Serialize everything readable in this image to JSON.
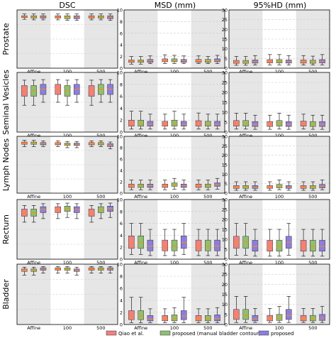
{
  "columns": [
    "DSC",
    "MSD (mm)",
    "95%HD (mm)"
  ],
  "rows": [
    "Prostate",
    "Seminal Vesicles",
    "Lymph Nodes",
    "Rectum",
    "Bladder"
  ],
  "groups": [
    "Affine",
    "100",
    "500"
  ],
  "legend": {
    "items": [
      {
        "label": "Qiao et al.",
        "color": "#f08080"
      },
      {
        "label": "proposed (manual bladder contour)",
        "color": "#8fbf6f"
      },
      {
        "label": "proposed",
        "color": "#8c7ee0"
      }
    ]
  },
  "colors": {
    "shade": "#e6e6e6",
    "grid": "#cccccc",
    "median": "#ff8c00"
  },
  "chart_data": {
    "type": "box",
    "x_groups": [
      "Affine",
      "100",
      "500"
    ],
    "boxes_per_group": 3,
    "shaded_groups": [
      0,
      2
    ],
    "series_colors": [
      "#f08080",
      "#8fbf6f",
      "#8c7ee0"
    ],
    "panels": [
      {
        "row": 0,
        "col": 0,
        "ylim": [
          0,
          1
        ],
        "yticks": [],
        "boxes": [
          [
            0.84,
            0.87,
            0.89,
            0.9,
            0.93
          ],
          [
            0.83,
            0.86,
            0.88,
            0.9,
            0.93
          ],
          [
            0.83,
            0.86,
            0.88,
            0.9,
            0.93
          ],
          [
            0.83,
            0.86,
            0.88,
            0.9,
            0.93
          ],
          [
            0.82,
            0.85,
            0.88,
            0.9,
            0.93
          ],
          [
            0.82,
            0.85,
            0.88,
            0.9,
            0.93
          ],
          [
            0.83,
            0.86,
            0.88,
            0.9,
            0.93
          ],
          [
            0.83,
            0.86,
            0.88,
            0.9,
            0.93
          ],
          [
            0.82,
            0.85,
            0.88,
            0.9,
            0.93
          ]
        ]
      },
      {
        "row": 0,
        "col": 1,
        "ylim": [
          0,
          10
        ],
        "yticks": [
          0,
          2,
          4,
          6,
          8,
          10
        ],
        "boxes": [
          [
            0.7,
            1.0,
            1.2,
            1.4,
            2.0
          ],
          [
            0.7,
            1.0,
            1.2,
            1.4,
            2.0
          ],
          [
            0.8,
            1.0,
            1.3,
            1.5,
            2.1
          ],
          [
            0.8,
            1.1,
            1.3,
            1.6,
            2.3
          ],
          [
            0.8,
            1.1,
            1.3,
            1.6,
            2.2
          ],
          [
            0.8,
            1.0,
            1.3,
            1.5,
            2.1
          ],
          [
            0.8,
            1.0,
            1.2,
            1.5,
            2.1
          ],
          [
            0.8,
            1.0,
            1.2,
            1.5,
            2.0
          ],
          [
            0.8,
            1.1,
            1.3,
            1.6,
            2.2
          ]
        ]
      },
      {
        "row": 0,
        "col": 2,
        "ylim": [
          0,
          30
        ],
        "yticks": [
          0,
          5,
          10,
          15,
          20,
          25,
          30
        ],
        "boxes": [
          [
            1.5,
            2.5,
            3.2,
            4.0,
            6.0
          ],
          [
            1.5,
            2.5,
            3.2,
            4.0,
            6.0
          ],
          [
            1.6,
            2.6,
            3.3,
            4.2,
            6.5
          ],
          [
            1.7,
            2.7,
            3.4,
            4.4,
            7.0
          ],
          [
            1.7,
            2.7,
            3.4,
            4.4,
            7.0
          ],
          [
            1.6,
            2.6,
            3.3,
            4.2,
            6.5
          ],
          [
            1.6,
            2.6,
            3.3,
            4.2,
            6.5
          ],
          [
            1.6,
            2.5,
            3.2,
            4.1,
            6.2
          ],
          [
            1.7,
            2.7,
            3.4,
            4.4,
            7.0
          ]
        ]
      },
      {
        "row": 1,
        "col": 0,
        "ylim": [
          0,
          1
        ],
        "yticks": [],
        "boxes": [
          [
            0.45,
            0.6,
            0.7,
            0.78,
            0.87
          ],
          [
            0.45,
            0.6,
            0.7,
            0.78,
            0.87
          ],
          [
            0.5,
            0.63,
            0.72,
            0.8,
            0.88
          ],
          [
            0.5,
            0.63,
            0.72,
            0.8,
            0.88
          ],
          [
            0.45,
            0.6,
            0.7,
            0.78,
            0.87
          ],
          [
            0.5,
            0.63,
            0.72,
            0.8,
            0.88
          ],
          [
            0.45,
            0.6,
            0.7,
            0.78,
            0.87
          ],
          [
            0.5,
            0.63,
            0.72,
            0.8,
            0.88
          ],
          [
            0.5,
            0.63,
            0.72,
            0.8,
            0.88
          ]
        ]
      },
      {
        "row": 1,
        "col": 1,
        "ylim": [
          0,
          10
        ],
        "yticks": [
          0,
          2,
          4,
          6,
          8,
          10
        ],
        "boxes": [
          [
            0.5,
            1.0,
            1.4,
            2.0,
            3.5
          ],
          [
            0.5,
            1.0,
            1.4,
            2.0,
            3.5
          ],
          [
            0.5,
            1.0,
            1.3,
            1.8,
            3.0
          ],
          [
            0.5,
            1.0,
            1.3,
            1.8,
            3.0
          ],
          [
            0.5,
            1.0,
            1.4,
            2.0,
            3.5
          ],
          [
            0.5,
            1.0,
            1.3,
            1.8,
            3.0
          ],
          [
            0.5,
            1.0,
            1.4,
            1.9,
            3.2
          ],
          [
            0.5,
            1.0,
            1.3,
            1.8,
            3.0
          ],
          [
            0.5,
            1.0,
            1.3,
            1.8,
            3.0
          ]
        ]
      },
      {
        "row": 1,
        "col": 2,
        "ylim": [
          0,
          30
        ],
        "yticks": [
          0,
          5,
          10,
          15,
          20,
          25,
          30
        ],
        "boxes": [
          [
            1.5,
            3.0,
            4.3,
            5.8,
            9.5
          ],
          [
            1.5,
            3.0,
            4.3,
            5.8,
            9.5
          ],
          [
            1.4,
            2.8,
            3.9,
            5.3,
            8.5
          ],
          [
            1.4,
            2.8,
            3.9,
            5.3,
            8.5
          ],
          [
            1.5,
            3.0,
            4.3,
            5.8,
            9.5
          ],
          [
            1.4,
            2.8,
            3.9,
            5.3,
            8.5
          ],
          [
            1.5,
            3.0,
            4.1,
            5.5,
            9.0
          ],
          [
            1.4,
            2.8,
            3.9,
            5.3,
            8.5
          ],
          [
            1.4,
            2.8,
            3.9,
            5.3,
            8.5
          ]
        ]
      },
      {
        "row": 2,
        "col": 0,
        "ylim": [
          0,
          1
        ],
        "yticks": [],
        "boxes": [
          [
            0.82,
            0.86,
            0.88,
            0.9,
            0.93
          ],
          [
            0.82,
            0.86,
            0.88,
            0.9,
            0.93
          ],
          [
            0.82,
            0.85,
            0.87,
            0.89,
            0.92
          ],
          [
            0.82,
            0.85,
            0.87,
            0.89,
            0.92
          ],
          [
            0.8,
            0.84,
            0.86,
            0.88,
            0.91
          ],
          [
            0.8,
            0.84,
            0.86,
            0.88,
            0.91
          ],
          [
            0.82,
            0.85,
            0.87,
            0.89,
            0.92
          ],
          [
            0.82,
            0.85,
            0.87,
            0.89,
            0.92
          ],
          [
            0.78,
            0.82,
            0.85,
            0.87,
            0.9
          ]
        ]
      },
      {
        "row": 2,
        "col": 1,
        "ylim": [
          0,
          10
        ],
        "yticks": [
          0,
          2,
          4,
          6,
          8,
          10
        ],
        "boxes": [
          [
            0.6,
            1.0,
            1.3,
            1.6,
            2.3
          ],
          [
            0.6,
            1.0,
            1.3,
            1.6,
            2.3
          ],
          [
            0.6,
            1.0,
            1.3,
            1.6,
            2.3
          ],
          [
            0.6,
            1.0,
            1.3,
            1.6,
            2.3
          ],
          [
            0.7,
            1.2,
            1.5,
            1.8,
            2.6
          ],
          [
            0.6,
            1.0,
            1.3,
            1.6,
            2.3
          ],
          [
            0.6,
            1.0,
            1.3,
            1.6,
            2.3
          ],
          [
            0.6,
            1.0,
            1.3,
            1.6,
            2.3
          ],
          [
            0.7,
            1.2,
            1.5,
            1.8,
            2.6
          ]
        ]
      },
      {
        "row": 2,
        "col": 2,
        "ylim": [
          0,
          30
        ],
        "yticks": [
          0,
          5,
          10,
          15,
          20,
          25,
          30
        ],
        "boxes": [
          [
            1.5,
            2.5,
            3.2,
            4.0,
            6.0
          ],
          [
            1.5,
            2.5,
            3.2,
            4.0,
            6.0
          ],
          [
            1.5,
            2.5,
            3.2,
            4.0,
            6.0
          ],
          [
            1.5,
            2.5,
            3.2,
            4.0,
            6.0
          ],
          [
            1.8,
            2.8,
            3.6,
            4.6,
            7.0
          ],
          [
            1.5,
            2.5,
            3.2,
            4.0,
            6.0
          ],
          [
            1.5,
            2.5,
            3.2,
            4.0,
            6.0
          ],
          [
            1.5,
            2.5,
            3.2,
            4.0,
            6.0
          ],
          [
            1.8,
            2.8,
            3.6,
            4.6,
            7.0
          ]
        ]
      },
      {
        "row": 3,
        "col": 0,
        "ylim": [
          0,
          1
        ],
        "yticks": [],
        "boxes": [
          [
            0.62,
            0.72,
            0.78,
            0.84,
            0.9
          ],
          [
            0.62,
            0.72,
            0.78,
            0.84,
            0.9
          ],
          [
            0.68,
            0.78,
            0.83,
            0.88,
            0.93
          ],
          [
            0.68,
            0.78,
            0.83,
            0.88,
            0.93
          ],
          [
            0.7,
            0.8,
            0.85,
            0.89,
            0.94
          ],
          [
            0.68,
            0.78,
            0.83,
            0.88,
            0.93
          ],
          [
            0.62,
            0.72,
            0.78,
            0.84,
            0.9
          ],
          [
            0.68,
            0.78,
            0.83,
            0.88,
            0.93
          ],
          [
            0.7,
            0.8,
            0.85,
            0.89,
            0.94
          ]
        ]
      },
      {
        "row": 3,
        "col": 1,
        "ylim": [
          0,
          10
        ],
        "yticks": [
          0,
          2,
          4,
          6,
          8,
          10
        ],
        "boxes": [
          [
            0.8,
            1.8,
            2.8,
            3.9,
            6.0
          ],
          [
            0.8,
            1.8,
            2.8,
            3.9,
            6.0
          ],
          [
            0.6,
            1.4,
            2.2,
            3.2,
            5.0
          ],
          [
            0.6,
            1.4,
            2.2,
            3.2,
            5.0
          ],
          [
            0.6,
            1.4,
            2.2,
            3.2,
            5.0
          ],
          [
            0.8,
            1.8,
            2.8,
            3.9,
            6.0
          ],
          [
            0.6,
            1.4,
            2.2,
            3.2,
            5.0
          ],
          [
            0.6,
            1.4,
            2.2,
            3.2,
            5.0
          ],
          [
            0.6,
            1.4,
            2.2,
            3.2,
            5.0
          ]
        ]
      },
      {
        "row": 3,
        "col": 2,
        "ylim": [
          0,
          30
        ],
        "yticks": [
          0,
          5,
          10,
          15,
          20,
          25,
          30
        ],
        "boxes": [
          [
            2,
            5.5,
            8.5,
            11.5,
            18
          ],
          [
            2,
            5.5,
            8.5,
            11.5,
            18
          ],
          [
            1.5,
            4.0,
            6.5,
            9.5,
            15
          ],
          [
            1.5,
            4.0,
            6.5,
            9.5,
            15
          ],
          [
            1.5,
            4.0,
            6.5,
            9.5,
            15
          ],
          [
            2,
            5.5,
            8.5,
            11.5,
            18
          ],
          [
            1.5,
            4.0,
            6.5,
            9.5,
            15
          ],
          [
            1.5,
            4.0,
            6.5,
            9.5,
            15
          ],
          [
            1.5,
            4.0,
            6.5,
            9.5,
            15
          ]
        ]
      },
      {
        "row": 4,
        "col": 0,
        "ylim": [
          0,
          1
        ],
        "yticks": [],
        "boxes": [
          [
            0.82,
            0.88,
            0.9,
            0.92,
            0.95
          ],
          [
            0.82,
            0.88,
            0.9,
            0.92,
            0.95
          ],
          [
            0.85,
            0.9,
            0.92,
            0.94,
            0.96
          ],
          [
            0.85,
            0.9,
            0.92,
            0.94,
            0.96
          ],
          [
            0.85,
            0.9,
            0.92,
            0.94,
            0.96
          ],
          [
            0.82,
            0.88,
            0.9,
            0.92,
            0.95
          ],
          [
            0.85,
            0.9,
            0.92,
            0.94,
            0.96
          ],
          [
            0.85,
            0.9,
            0.92,
            0.94,
            0.96
          ],
          [
            0.85,
            0.9,
            0.92,
            0.94,
            0.96
          ]
        ]
      },
      {
        "row": 4,
        "col": 1,
        "ylim": [
          0,
          10
        ],
        "yticks": [
          0,
          2,
          4,
          6,
          8,
          10
        ],
        "boxes": [
          [
            0.3,
            0.8,
            1.4,
            2.3,
            4.5
          ],
          [
            0.3,
            0.8,
            1.4,
            2.3,
            4.5
          ],
          [
            0.3,
            0.6,
            0.9,
            1.5,
            2.6
          ],
          [
            0.3,
            0.6,
            0.9,
            1.5,
            2.6
          ],
          [
            0.3,
            0.6,
            1.0,
            1.6,
            2.8
          ],
          [
            0.3,
            0.8,
            1.4,
            2.3,
            4.5
          ],
          [
            0.3,
            0.6,
            0.9,
            1.5,
            2.6
          ],
          [
            0.3,
            0.6,
            0.9,
            1.5,
            2.6
          ],
          [
            0.3,
            0.6,
            1.0,
            1.6,
            2.8
          ]
        ]
      },
      {
        "row": 4,
        "col": 2,
        "ylim": [
          0,
          30
        ],
        "yticks": [
          0,
          5,
          10,
          15,
          20,
          25,
          30
        ],
        "boxes": [
          [
            1,
            2.5,
            4.5,
            7.5,
            14
          ],
          [
            1,
            2.5,
            4.5,
            7.5,
            14
          ],
          [
            1,
            1.8,
            2.8,
            4.5,
            8
          ],
          [
            1,
            1.8,
            2.8,
            4.5,
            8
          ],
          [
            1,
            2.0,
            3.2,
            5.0,
            9
          ],
          [
            1,
            2.5,
            4.5,
            7.5,
            14
          ],
          [
            1,
            1.8,
            2.8,
            4.5,
            8
          ],
          [
            1,
            1.8,
            2.8,
            4.5,
            8
          ],
          [
            1,
            2.0,
            3.2,
            5.0,
            9
          ]
        ]
      }
    ]
  }
}
